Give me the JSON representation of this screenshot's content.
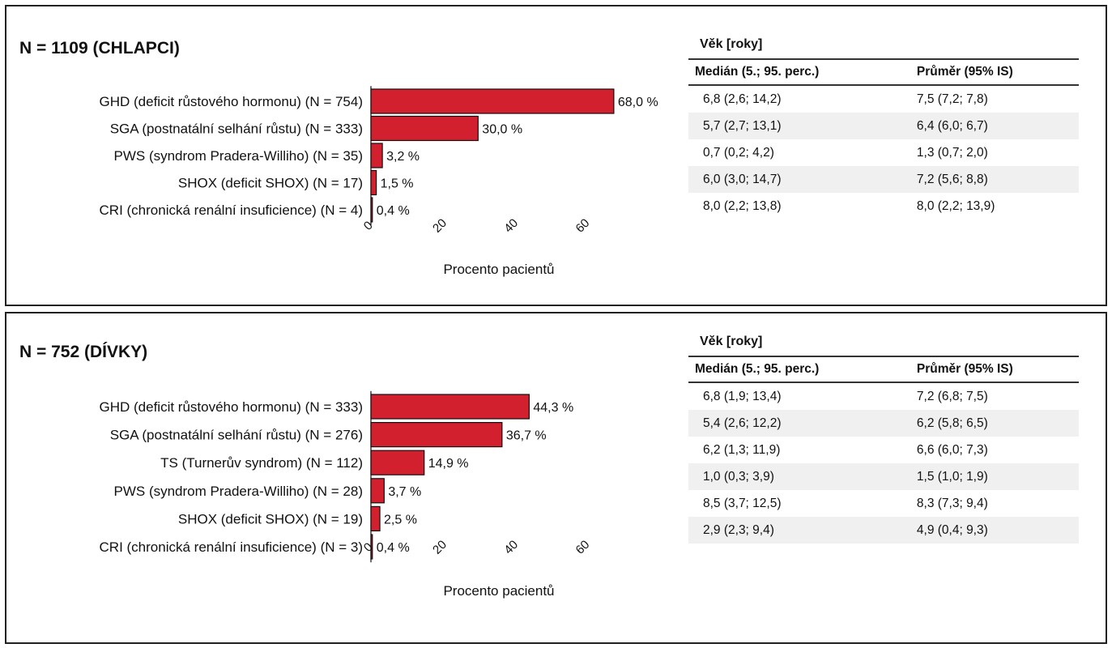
{
  "chart_data": [
    {
      "type": "bar",
      "orientation": "horizontal",
      "title": "N = 1109 (CHLAPCI)",
      "categories": [
        "GHD (deficit růstového hormonu)  (N = 754)",
        "SGA (postnatální selhání růstu) (N = 333)",
        "PWS (syndrom Pradera-Williho) (N = 35)",
        "SHOX (deficit SHOX) (N = 17)",
        "CRI (chronická renální insuficience) (N = 4)"
      ],
      "values": [
        68.0,
        30.0,
        3.2,
        1.5,
        0.4
      ],
      "value_labels": [
        "68,0 %",
        "30,0 %",
        "3,2 %",
        "1,5 %",
        "0,4 %"
      ],
      "xlabel": "Procento pacientů",
      "ylabel": "",
      "xlim": [
        0,
        70
      ],
      "xticks": [
        "0",
        "20",
        "40",
        "60"
      ],
      "bar_color": "#d3202f",
      "grid": false,
      "legend": "none"
    },
    {
      "type": "bar",
      "orientation": "horizontal",
      "title": "N = 752 (DÍVKY)",
      "categories": [
        "GHD (deficit růstového hormonu)  (N = 333)",
        "SGA (postnatální selhání růstu) (N = 276)",
        "TS (Turnerův syndrom) (N = 112)",
        "PWS (syndrom Pradera-Williho) (N = 28)",
        "SHOX (deficit SHOX) (N = 19)",
        "CRI (chronická renální insuficience) (N = 3)"
      ],
      "values": [
        44.3,
        36.7,
        14.9,
        3.7,
        2.5,
        0.4
      ],
      "value_labels": [
        "44,3 %",
        "36,7 %",
        "14,9 %",
        "3,7 %",
        "2,5 %",
        "0,4 %"
      ],
      "xlabel": "Procento pacientů",
      "ylabel": "",
      "xlim": [
        0,
        70
      ],
      "xticks": [
        "0",
        "20",
        "40",
        "60"
      ],
      "bar_color": "#d3202f",
      "grid": false,
      "legend": "none"
    }
  ],
  "tables": [
    {
      "heading": "Věk [roky]",
      "columns": [
        "Medián (5.; 95. perc.)",
        "Průměr (95% IS)"
      ],
      "rows": [
        [
          "6,8 (2,6; 14,2)",
          "7,5 (7,2;  7,8)"
        ],
        [
          "5,7 (2,7; 13,1)",
          "6,4 (6,0;  6,7)"
        ],
        [
          "0,7 (0,2; 4,2)",
          "1,3 (0,7;  2,0)"
        ],
        [
          "6,0 (3,0; 14,7)",
          "7,2 (5,6;  8,8)"
        ],
        [
          "8,0 (2,2; 13,8)",
          "8,0 (2,2; 13,9)"
        ]
      ]
    },
    {
      "heading": "Věk [roky]",
      "columns": [
        "Medián (5.; 95. perc.)",
        "Průměr (95% IS)"
      ],
      "rows": [
        [
          "6,8 (1,9; 13,4)",
          "7,2 (6,8; 7,5)"
        ],
        [
          "5,4 (2,6; 12,2)",
          "6,2 (5,8; 6,5)"
        ],
        [
          "6,2 (1,3; 11,9)",
          "6,6 (6,0; 7,3)"
        ],
        [
          "1,0 (0,3;  3,9)",
          "1,5 (1,0; 1,9)"
        ],
        [
          "8,5 (3,7; 12,5)",
          "8,3 (7,3; 9,4)"
        ],
        [
          "2,9 (2,3;  9,4)",
          "4,9 (0,4; 9,3)"
        ]
      ]
    }
  ]
}
